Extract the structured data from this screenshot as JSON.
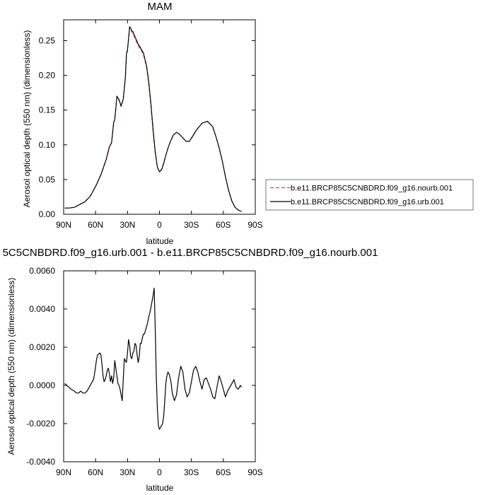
{
  "chart_data": [
    {
      "type": "line",
      "title": "MAM",
      "xlabel": "latitude",
      "ylabel": "Aerosol optical depth (550 nm) (dimensionless)",
      "x_tick_labels": [
        "90N",
        "60N",
        "30N",
        "0",
        "30S",
        "60S",
        "90S"
      ],
      "x_ticks": [
        90,
        60,
        30,
        0,
        -30,
        -60,
        -90
      ],
      "xlim": [
        90,
        -90
      ],
      "y_tick_labels": [
        "0.00",
        "0.05",
        "0.10",
        "0.15",
        "0.20",
        "0.25"
      ],
      "y_ticks": [
        0.0,
        0.05,
        0.1,
        0.15,
        0.2,
        0.25
      ],
      "ylim": [
        0.0,
        0.28
      ],
      "legend_position": "right, outside plot",
      "x": [
        89,
        85,
        80,
        75,
        70,
        65,
        60,
        55,
        50,
        47,
        45,
        43,
        42,
        40,
        38,
        36,
        34,
        32,
        31,
        30,
        29,
        28,
        27,
        26,
        25,
        24,
        22,
        20,
        18,
        15,
        12,
        10,
        8,
        6,
        4,
        2,
        0,
        -2,
        -4,
        -6,
        -8,
        -10,
        -13,
        -16,
        -19,
        -22,
        -25,
        -28,
        -31,
        -35,
        -40,
        -45,
        -50,
        -53,
        -56,
        -59,
        -62,
        -65,
        -68,
        -71,
        -74,
        -77
      ],
      "series": [
        {
          "name": "b.e11.BRCP85C5CNBDRD.f09_g16.nourb.001",
          "color": "#e8483c",
          "dash": "dashed",
          "values": [
            0.009,
            0.009,
            0.01,
            0.014,
            0.018,
            0.026,
            0.04,
            0.057,
            0.079,
            0.097,
            0.103,
            0.133,
            0.136,
            0.169,
            0.164,
            0.155,
            0.165,
            0.195,
            0.23,
            0.235,
            0.252,
            0.268,
            0.266,
            0.262,
            0.262,
            0.257,
            0.25,
            0.243,
            0.238,
            0.23,
            0.211,
            0.187,
            0.155,
            0.118,
            0.088,
            0.068,
            0.061,
            0.065,
            0.074,
            0.085,
            0.095,
            0.104,
            0.114,
            0.118,
            0.115,
            0.11,
            0.105,
            0.105,
            0.112,
            0.122,
            0.131,
            0.134,
            0.126,
            0.112,
            0.096,
            0.077,
            0.054,
            0.034,
            0.019,
            0.01,
            0.006,
            0.004
          ]
        },
        {
          "name": "b.e11.BRCP85C5CNBDRD.f09_g16.urb.001",
          "color": "#000000",
          "dash": "solid",
          "values": [
            0.009,
            0.009,
            0.01,
            0.014,
            0.018,
            0.026,
            0.04,
            0.057,
            0.079,
            0.097,
            0.103,
            0.133,
            0.136,
            0.17,
            0.165,
            0.156,
            0.166,
            0.197,
            0.231,
            0.237,
            0.253,
            0.27,
            0.268,
            0.264,
            0.263,
            0.259,
            0.252,
            0.245,
            0.24,
            0.232,
            0.213,
            0.19,
            0.158,
            0.122,
            0.09,
            0.068,
            0.061,
            0.064,
            0.073,
            0.085,
            0.095,
            0.104,
            0.114,
            0.118,
            0.115,
            0.11,
            0.105,
            0.105,
            0.112,
            0.122,
            0.131,
            0.134,
            0.126,
            0.112,
            0.096,
            0.077,
            0.054,
            0.034,
            0.019,
            0.01,
            0.006,
            0.004
          ]
        }
      ]
    },
    {
      "type": "line",
      "title": "5C5CNBDRD.f09_g16.urb.001 - b.e11.BRCP85C5CNBDRD.f09_g16.nourb.001",
      "xlabel": "latitude",
      "ylabel": "Aerosol optical depth (550 nm) (dimensionless)",
      "x_tick_labels": [
        "90N",
        "60N",
        "30N",
        "0",
        "30S",
        "60S",
        "90S"
      ],
      "x_ticks": [
        90,
        60,
        30,
        0,
        -30,
        -60,
        -90
      ],
      "xlim": [
        90,
        -90
      ],
      "y_tick_labels": [
        "0.0060",
        "0.0040",
        "0.0020",
        "0.0000",
        "-0.0020",
        "-0.0040"
      ],
      "y_ticks": [
        0.006,
        0.004,
        0.002,
        0.0,
        -0.002,
        -0.004
      ],
      "ylim": [
        -0.004,
        0.006
      ],
      "x": [
        89,
        87,
        85,
        83,
        80,
        78,
        76,
        74,
        72,
        70,
        68,
        66,
        64,
        62,
        61,
        60,
        59,
        58,
        56,
        55,
        54,
        53,
        52,
        51,
        50,
        49,
        48,
        47,
        46,
        45,
        44,
        43,
        42,
        41,
        40,
        39,
        38,
        37,
        36,
        35,
        34,
        33,
        32,
        31,
        30,
        29,
        28,
        27,
        26,
        25,
        24,
        23,
        22,
        21,
        20,
        19,
        18,
        17,
        16,
        15,
        14,
        13,
        12,
        11,
        10,
        9,
        8,
        7,
        6,
        5,
        4,
        3,
        2,
        1,
        0,
        -1,
        -2,
        -3,
        -4,
        -5,
        -6,
        -7,
        -8,
        -9,
        -10,
        -11,
        -12,
        -14,
        -16,
        -18,
        -20,
        -22,
        -24,
        -26,
        -28,
        -30,
        -32,
        -34,
        -36,
        -38,
        -40,
        -42,
        -44,
        -46,
        -48,
        -50,
        -52,
        -54,
        -56,
        -58,
        -60,
        -62,
        -64,
        -66,
        -68,
        -70,
        -72,
        -74,
        -76,
        -77
      ],
      "series": [
        {
          "name": "",
          "color": "#000000",
          "dash": "solid",
          "values": [
            0.0001,
            0.0,
            -0.0001,
            -0.0002,
            -0.0003,
            -0.0004,
            -0.0004,
            -0.0003,
            -0.0004,
            -0.0004,
            -0.0003,
            -0.0001,
            0.0001,
            0.0003,
            0.0006,
            0.001,
            0.0014,
            0.0016,
            0.0017,
            0.0016,
            0.0011,
            0.0005,
            0.0002,
            0.0003,
            0.0005,
            0.0008,
            0.0009,
            0.0006,
            0.0002,
            0.0005,
            0.0001,
            0.0004,
            0.0013,
            0.0009,
            0.0005,
            0.0001,
            0.0,
            -0.0002,
            -0.0005,
            -0.0008,
            0.0003,
            0.0014,
            0.0013,
            0.0012,
            0.0017,
            0.0024,
            0.0021,
            0.0015,
            0.0014,
            0.0017,
            0.0018,
            0.0022,
            0.0021,
            0.0016,
            0.0012,
            0.0015,
            0.0022,
            0.0022,
            0.0025,
            0.0027,
            0.0027,
            0.0029,
            0.0031,
            0.0033,
            0.0036,
            0.0038,
            0.0041,
            0.0044,
            0.0047,
            0.0051,
            0.003,
            0.0005,
            -0.0012,
            -0.0021,
            -0.0023,
            -0.0022,
            -0.0021,
            -0.002,
            -0.0016,
            -0.0008,
            0.0001,
            0.0005,
            0.0007,
            0.0006,
            0.0004,
            0.0001,
            -0.0004,
            -0.0008,
            -0.0005,
            0.0004,
            0.001,
            0.0007,
            -0.0002,
            -0.0006,
            -0.0004,
            0.0002,
            0.0008,
            0.001,
            0.0007,
            0.0002,
            -0.0002,
            0.0003,
            0.0004,
            0.0001,
            -0.0002,
            -0.0006,
            -0.0007,
            -0.0001,
            0.0005,
            0.0002,
            -0.0002,
            -0.0006,
            -0.0003,
            -0.0001,
            0.0001,
            0.0003,
            -0.0001,
            -0.0002,
            0.0,
            -0.0001
          ]
        }
      ]
    }
  ]
}
